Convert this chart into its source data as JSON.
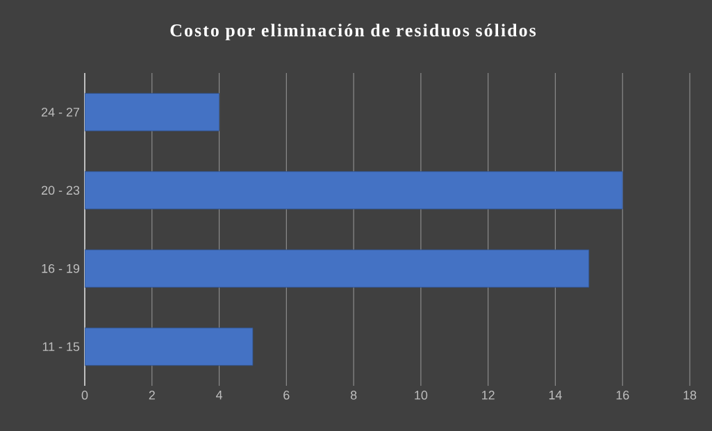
{
  "chart_data": {
    "type": "bar",
    "orientation": "horizontal",
    "title": "Costo por eliminación de residuos sólidos",
    "categories": [
      "24 - 27",
      "20 - 23",
      "16 - 19",
      "11 - 15"
    ],
    "values": [
      4,
      16,
      15,
      5
    ],
    "color": "#4472c4",
    "xlim": [
      0,
      18
    ],
    "xticks": [
      0,
      2,
      4,
      6,
      8,
      10,
      12,
      14,
      16,
      18
    ],
    "grid": "x"
  }
}
